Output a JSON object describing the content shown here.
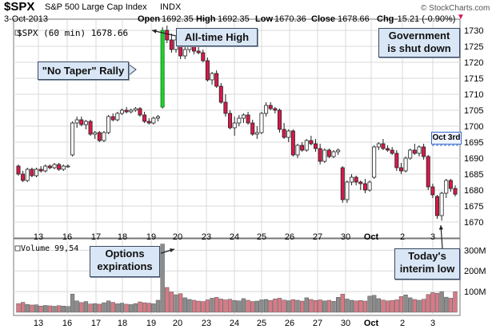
{
  "header": {
    "symbol": "$SPX",
    "name": "S&P 500 Large Cap Index",
    "exchange": "INDX",
    "date": "3-Oct-2013",
    "open_label": "Open",
    "open_value": "1692.35",
    "high_label": "High",
    "high_value": "1692.35",
    "low_label": "Low",
    "low_value": "1670.36",
    "close_label": "Close",
    "close_value": "1678.66",
    "chg_label": "Chg",
    "chg_value": "-15.21 (-0.90%)",
    "copyright": "© StockCharts.com",
    "series_label": "$SPX (60 min) 1678.66",
    "volume_label": "Volume 99,54"
  },
  "annotations": {
    "no_taper": "\"No Taper\" Rally",
    "all_time_high": "All-time High",
    "government_line1": "Government",
    "government_line2": "is shut down",
    "options_line1": "Options",
    "options_line2": "expirations",
    "interim_line1": "Today's",
    "interim_line2": "interim low",
    "oct3rd": "Oct 3rd"
  },
  "colors": {
    "up": "#ffffff",
    "down": "#d8194a",
    "rally": "#1fcf2e",
    "vol_up": "#8c8c8c",
    "vol_down": "#d97a86",
    "grid": "#d8d8d8",
    "callout_bg": "#d9e6f5",
    "level_line": "#3a6ad0"
  },
  "chart_data": {
    "type": "candlestick",
    "interval": "60 min",
    "x_ticks": [
      "13",
      "16",
      "17",
      "18",
      "19",
      "20",
      "23",
      "24",
      "25",
      "26",
      "27",
      "30",
      "Oct",
      "2",
      "3"
    ],
    "price_ylim": [
      1667,
      1732
    ],
    "price_ticks": [
      1670,
      1675,
      1680,
      1685,
      1690,
      1695,
      1700,
      1705,
      1710,
      1715,
      1720,
      1725,
      1730
    ],
    "volume_ticks": [
      "100M",
      "200M",
      "300M"
    ],
    "volume_ylim": [
      0,
      340
    ],
    "level_line": 1694,
    "candles": [
      [
        1687.5,
        1688.0,
        1684.5,
        1685.0
      ],
      [
        1685.0,
        1686.0,
        1682.5,
        1683.0
      ],
      [
        1683.0,
        1687.0,
        1682.5,
        1686.5
      ],
      [
        1686.5,
        1687.0,
        1684.0,
        1684.5
      ],
      [
        1684.5,
        1687.0,
        1684.0,
        1686.5
      ],
      [
        1686.5,
        1687.5,
        1685.5,
        1686.0
      ],
      [
        1686.0,
        1688.0,
        1685.5,
        1687.5
      ],
      [
        1687.5,
        1688.0,
        1686.5,
        1687.0
      ],
      [
        1687.0,
        1688.5,
        1686.5,
        1688.0
      ],
      [
        1688.0,
        1688.5,
        1686.0,
        1686.5
      ],
      [
        1686.5,
        1688.0,
        1686.0,
        1687.5
      ],
      [
        1687.5,
        1688.0,
        1687.0,
        1687.5
      ],
      [
        1691.0,
        1701.5,
        1690.5,
        1701.0
      ],
      [
        1701.0,
        1703.0,
        1699.5,
        1702.0
      ],
      [
        1702.0,
        1703.0,
        1700.0,
        1700.5
      ],
      [
        1700.5,
        1702.0,
        1699.0,
        1701.5
      ],
      [
        1701.5,
        1702.0,
        1697.0,
        1697.5
      ],
      [
        1697.5,
        1698.5,
        1696.0,
        1698.0
      ],
      [
        1698.0,
        1698.5,
        1695.0,
        1695.5
      ],
      [
        1695.5,
        1698.5,
        1695.0,
        1698.0
      ],
      [
        1698.0,
        1703.5,
        1697.5,
        1703.0
      ],
      [
        1703.0,
        1704.0,
        1701.5,
        1702.0
      ],
      [
        1702.0,
        1704.5,
        1701.5,
        1704.0
      ],
      [
        1704.0,
        1705.5,
        1703.5,
        1705.0
      ],
      [
        1705.0,
        1706.0,
        1704.0,
        1704.5
      ],
      [
        1704.5,
        1705.5,
        1704.0,
        1705.0
      ],
      [
        1705.0,
        1706.0,
        1704.5,
        1705.5
      ],
      [
        1705.5,
        1706.0,
        1703.0,
        1703.5
      ],
      [
        1703.5,
        1704.5,
        1701.0,
        1701.5
      ],
      [
        1701.5,
        1702.5,
        1700.5,
        1701.0
      ],
      [
        1701.0,
        1703.0,
        1700.5,
        1702.5
      ],
      [
        1702.5,
        1703.5,
        1701.5,
        1703.0
      ],
      [
        1706.0,
        1731.0,
        1705.5,
        1730.0
      ],
      [
        1730.0,
        1731.5,
        1726.0,
        1727.0
      ],
      [
        1727.0,
        1729.0,
        1723.0,
        1724.0
      ],
      [
        1724.0,
        1728.0,
        1723.0,
        1727.0
      ],
      [
        1727.0,
        1728.0,
        1721.0,
        1722.0
      ],
      [
        1722.0,
        1725.0,
        1721.0,
        1724.0
      ],
      [
        1724.0,
        1726.5,
        1723.0,
        1726.0
      ],
      [
        1726.0,
        1727.0,
        1722.5,
        1723.5
      ],
      [
        1723.5,
        1725.0,
        1722.5,
        1723.0
      ],
      [
        1723.0,
        1724.0,
        1720.0,
        1720.5
      ],
      [
        1720.5,
        1721.5,
        1714.0,
        1714.5
      ],
      [
        1714.5,
        1717.0,
        1713.0,
        1716.5
      ],
      [
        1716.5,
        1717.5,
        1712.0,
        1712.5
      ],
      [
        1712.5,
        1713.5,
        1707.0,
        1707.5
      ],
      [
        1707.5,
        1710.0,
        1703.0,
        1704.0
      ],
      [
        1704.0,
        1705.0,
        1699.0,
        1699.5
      ],
      [
        1699.5,
        1703.0,
        1697.0,
        1701.0
      ],
      [
        1701.0,
        1703.5,
        1700.0,
        1702.5
      ],
      [
        1702.5,
        1704.0,
        1701.0,
        1703.5
      ],
      [
        1703.5,
        1704.5,
        1700.5,
        1701.0
      ],
      [
        1701.0,
        1702.0,
        1697.0,
        1697.5
      ],
      [
        1697.5,
        1700.0,
        1696.0,
        1698.0
      ],
      [
        1698.0,
        1704.5,
        1697.5,
        1704.0
      ],
      [
        1704.0,
        1707.5,
        1703.0,
        1706.5
      ],
      [
        1706.5,
        1707.5,
        1705.0,
        1705.5
      ],
      [
        1705.5,
        1706.0,
        1704.0,
        1705.0
      ],
      [
        1705.0,
        1705.5,
        1698.0,
        1699.0
      ],
      [
        1699.0,
        1701.0,
        1696.0,
        1696.5
      ],
      [
        1696.5,
        1699.0,
        1695.0,
        1698.5
      ],
      [
        1698.5,
        1699.0,
        1690.5,
        1691.0
      ],
      [
        1691.0,
        1694.5,
        1690.0,
        1694.0
      ],
      [
        1694.0,
        1695.0,
        1692.0,
        1692.5
      ],
      [
        1692.5,
        1696.0,
        1692.0,
        1695.5
      ],
      [
        1695.5,
        1697.0,
        1694.0,
        1694.5
      ],
      [
        1694.5,
        1696.0,
        1692.0,
        1693.0
      ],
      [
        1693.0,
        1694.5,
        1688.0,
        1689.0
      ],
      [
        1689.0,
        1693.0,
        1688.5,
        1692.5
      ],
      [
        1692.5,
        1693.0,
        1690.0,
        1690.5
      ],
      [
        1690.5,
        1692.5,
        1690.0,
        1692.0
      ],
      [
        1692.0,
        1693.0,
        1691.0,
        1692.5
      ],
      [
        1687.0,
        1687.5,
        1676.0,
        1677.0
      ],
      [
        1677.0,
        1683.0,
        1676.0,
        1682.5
      ],
      [
        1682.5,
        1685.0,
        1681.5,
        1684.0
      ],
      [
        1684.0,
        1684.5,
        1681.5,
        1682.5
      ],
      [
        1682.5,
        1683.0,
        1680.0,
        1682.0
      ],
      [
        1682.0,
        1683.5,
        1679.0,
        1680.0
      ],
      [
        1680.0,
        1683.0,
        1679.5,
        1682.5
      ],
      [
        1684.0,
        1694.0,
        1683.5,
        1693.5
      ],
      [
        1693.5,
        1695.0,
        1692.5,
        1694.5
      ],
      [
        1694.5,
        1696.0,
        1692.5,
        1693.0
      ],
      [
        1693.0,
        1694.0,
        1692.0,
        1692.5
      ],
      [
        1692.5,
        1693.5,
        1691.0,
        1691.5
      ],
      [
        1691.5,
        1692.5,
        1686.0,
        1687.0
      ],
      [
        1687.0,
        1688.5,
        1685.0,
        1686.0
      ],
      [
        1686.0,
        1690.5,
        1685.5,
        1690.0
      ],
      [
        1690.0,
        1693.0,
        1689.5,
        1692.5
      ],
      [
        1692.5,
        1694.5,
        1691.0,
        1691.5
      ],
      [
        1691.5,
        1694.0,
        1690.5,
        1693.5
      ],
      [
        1693.5,
        1694.5,
        1689.5,
        1690.5
      ],
      [
        1690.5,
        1691.0,
        1680.0,
        1681.0
      ],
      [
        1681.0,
        1682.0,
        1677.5,
        1678.5
      ],
      [
        1678.0,
        1678.5,
        1671.0,
        1672.0
      ],
      [
        1672.0,
        1679.5,
        1670.4,
        1679.0
      ],
      [
        1679.0,
        1683.5,
        1677.5,
        1683.0
      ],
      [
        1683.0,
        1683.5,
        1679.5,
        1680.5
      ],
      [
        1680.5,
        1681.5,
        1678.0,
        1678.7
      ]
    ],
    "volume": [
      42,
      48,
      38,
      35,
      36,
      30,
      33,
      31,
      29,
      32,
      30,
      28,
      88,
      55,
      47,
      52,
      40,
      42,
      39,
      46,
      55,
      48,
      41,
      44,
      39,
      37,
      42,
      50,
      46,
      44,
      41,
      58,
      330,
      120,
      98,
      85,
      90,
      70,
      62,
      58,
      54,
      52,
      60,
      68,
      72,
      64,
      60,
      63,
      57,
      55,
      66,
      58,
      52,
      54,
      60,
      62,
      57,
      65,
      68,
      59,
      56,
      61,
      58,
      54,
      70,
      62,
      57,
      60,
      55,
      58,
      53,
      72,
      88,
      64,
      58,
      55,
      57,
      54,
      78,
      82,
      66,
      59,
      55,
      57,
      60,
      76,
      84,
      70,
      62,
      58,
      63,
      86,
      95,
      92,
      100,
      73,
      68,
      99
    ]
  }
}
